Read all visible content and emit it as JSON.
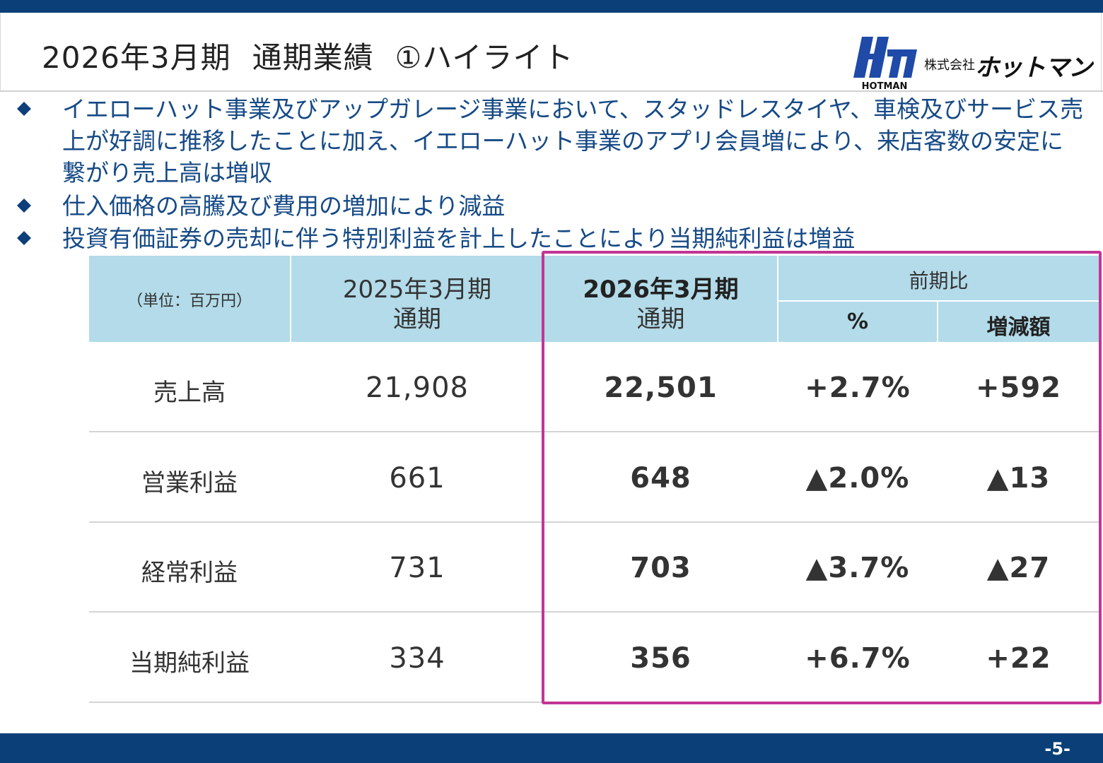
{
  "header": {
    "title_period": "2026年3月期",
    "title_section": "通期業績",
    "title_topic": "①ハイライト",
    "logo_mark_text": "Hm",
    "logo_sub_text": "HOTMAN",
    "logo_company_prefix": "株式会社",
    "logo_company_name": "ホットマン",
    "accent_color": "#0a3f78"
  },
  "bullets": [
    "イエローハット事業及びアップガレージ事業において、スタッドレスタイヤ、車検及びサービス売上が好調に推移したことに加え、イエローハット事業のアプリ会員増により、来店客数の安定に繋がり売上高は増収",
    "仕入価格の高騰及び費用の増加により減益",
    "投資有価証券の売却に伴う特別利益を計上したことにより当期純利益は増益"
  ],
  "table": {
    "unit_label": "（単位：百万円）",
    "prev_header_line1": "2025年3月期",
    "prev_header_line2": "通期",
    "cur_header_line1": "2026年3月期",
    "cur_header_line2": "通期",
    "compare_header": "前期比",
    "pct_header": "%",
    "diff_header": "増減額",
    "rows": [
      {
        "label": "売上高",
        "prev": "21,908",
        "cur": "22,501",
        "pct": "+2.7%",
        "diff": "+592"
      },
      {
        "label": "営業利益",
        "prev": "661",
        "cur": "648",
        "pct": "▲2.0%",
        "diff": "▲13"
      },
      {
        "label": "経常利益",
        "prev": "731",
        "cur": "703",
        "pct": "▲3.7%",
        "diff": "▲27"
      },
      {
        "label": "当期純利益",
        "prev": "334",
        "cur": "356",
        "pct": "+6.7%",
        "diff": "+22"
      }
    ],
    "header_bg": "#b3dbe9",
    "highlight_color": "#c23595"
  },
  "footer": {
    "page_number": "-5-"
  }
}
